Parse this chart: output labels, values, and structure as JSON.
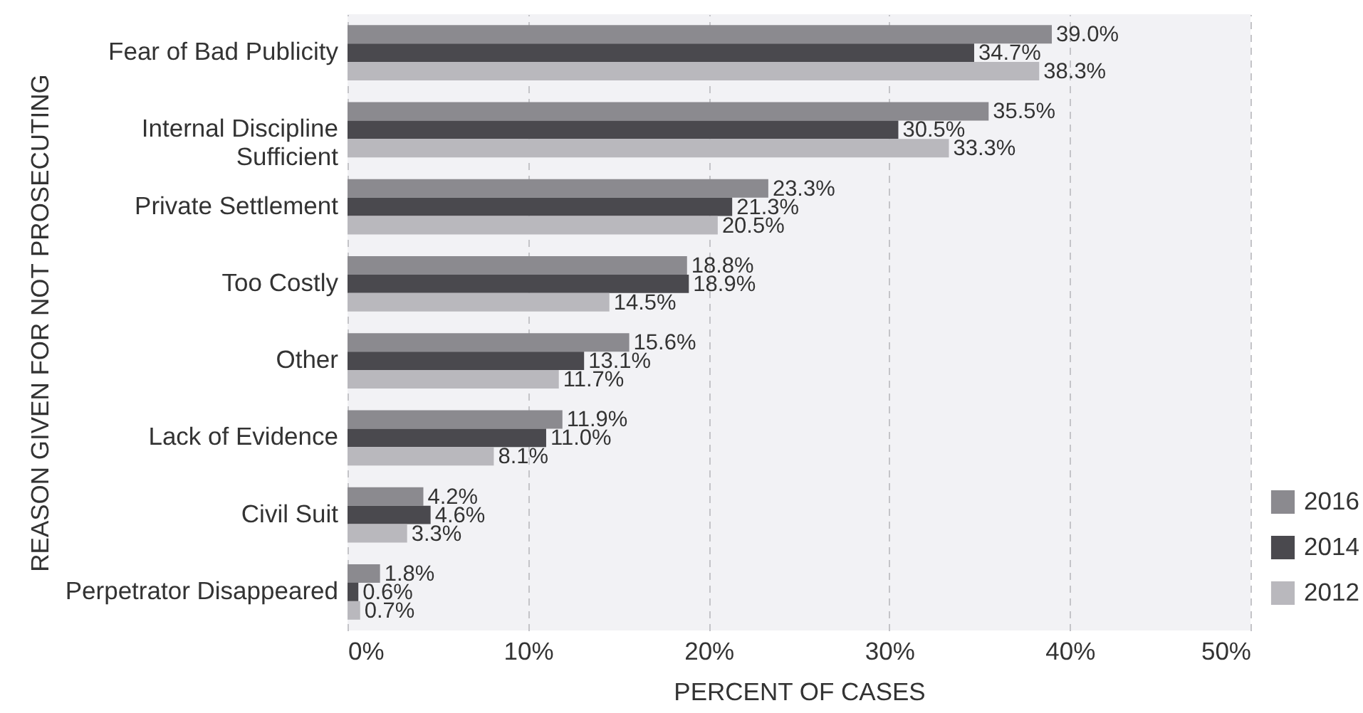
{
  "chart_data": {
    "type": "bar",
    "orientation": "horizontal",
    "categories": [
      "Fear of Bad Publicity",
      "Internal Discipline Sufficient",
      "Private Settlement",
      "Too Costly",
      "Other",
      "Lack of Evidence",
      "Civil Suit",
      "Perpetrator Disappeared"
    ],
    "series": [
      {
        "name": "2016",
        "color": "#8b8a8f",
        "values": [
          39.0,
          35.5,
          23.3,
          18.8,
          15.6,
          11.9,
          4.2,
          1.8
        ],
        "value_labels": [
          "39.0%",
          "35.5%",
          "23.3%",
          "18.8%",
          "15.6%",
          "11.9%",
          "4.2%",
          "1.8%"
        ]
      },
      {
        "name": "2014",
        "color": "#4a494e",
        "values": [
          34.7,
          30.5,
          21.3,
          18.9,
          13.1,
          11.0,
          4.6,
          0.6
        ],
        "value_labels": [
          "34.7%",
          "30.5%",
          "21.3%",
          "18.9%",
          "13.1%",
          "11.0%",
          "4.6%",
          "0.6%"
        ]
      },
      {
        "name": "2012",
        "color": "#b9b8bd",
        "values": [
          38.3,
          33.3,
          20.5,
          14.5,
          11.7,
          8.1,
          3.3,
          0.7
        ],
        "value_labels": [
          "38.3%",
          "33.3%",
          "20.5%",
          "14.5%",
          "11.7%",
          "8.1%",
          "3.3%",
          "0.7%"
        ]
      }
    ],
    "xlim": [
      0,
      50
    ],
    "xticks": [
      {
        "value": 0,
        "label": "0%"
      },
      {
        "value": 10,
        "label": "10%"
      },
      {
        "value": 20,
        "label": "20%"
      },
      {
        "value": 30,
        "label": "30%"
      },
      {
        "value": 40,
        "label": "40%"
      },
      {
        "value": 50,
        "label": "50%"
      }
    ],
    "xlabel": "PERCENT OF CASES",
    "ylabel": "REASON GIVEN FOR NOT PROSECUTING",
    "grid": "x",
    "legend": "bottom right"
  }
}
